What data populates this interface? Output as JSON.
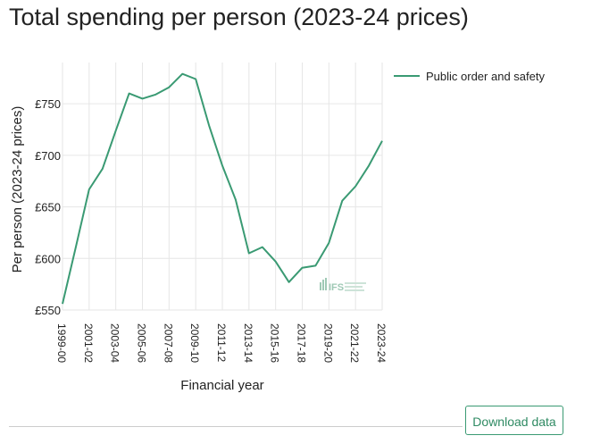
{
  "chart_data": {
    "type": "line",
    "title": "Total spending per person (2023-24 prices)",
    "xlabel": "Financial year",
    "ylabel": "Per person (2023-24 prices)",
    "ylim": [
      550,
      790
    ],
    "y_ticks": [
      550,
      600,
      650,
      700,
      750
    ],
    "y_tick_labels": [
      "£550",
      "£600",
      "£650",
      "£700",
      "£750"
    ],
    "x_tick_labels": [
      "1999-00",
      "2001-02",
      "2003-04",
      "2005-06",
      "2007-08",
      "2009-10",
      "2011-12",
      "2013-14",
      "2015-16",
      "2017-18",
      "2019-20",
      "2021-22",
      "2023-24"
    ],
    "grid": true,
    "legend_position": "top-right",
    "series": [
      {
        "name": "Public order and safety",
        "color": "#3a9a73",
        "x": [
          "1999-00",
          "2000-01",
          "2001-02",
          "2002-03",
          "2003-04",
          "2004-05",
          "2005-06",
          "2006-07",
          "2007-08",
          "2008-09",
          "2009-10",
          "2010-11",
          "2011-12",
          "2012-13",
          "2013-14",
          "2014-15",
          "2015-16",
          "2016-17",
          "2017-18",
          "2018-19",
          "2019-20",
          "2020-21",
          "2021-22",
          "2022-23",
          "2023-24"
        ],
        "values": [
          556,
          611,
          667,
          687,
          724,
          760,
          755,
          759,
          766,
          779,
          774,
          729,
          690,
          657,
          605,
          611,
          597,
          577,
          591,
          593,
          615,
          656,
          670,
          690,
          714
        ]
      }
    ]
  },
  "watermark": "IFS",
  "download_label": "Download data"
}
